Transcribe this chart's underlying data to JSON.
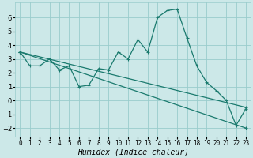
{
  "xlabel": "Humidex (Indice chaleur)",
  "background_color": "#cce8e8",
  "grid_color": "#99cccc",
  "line_color": "#1a7a6e",
  "xlim": [
    -0.5,
    23.5
  ],
  "ylim": [
    -2.6,
    7.1
  ],
  "yticks": [
    -2,
    -1,
    0,
    1,
    2,
    3,
    4,
    5,
    6
  ],
  "xticks": [
    0,
    1,
    2,
    3,
    4,
    5,
    6,
    7,
    8,
    9,
    10,
    11,
    12,
    13,
    14,
    15,
    16,
    17,
    18,
    19,
    20,
    21,
    22,
    23
  ],
  "line1_x": [
    0,
    1,
    2,
    3,
    4,
    5,
    6,
    7,
    8,
    9,
    10,
    11,
    12,
    13,
    14,
    15,
    16,
    17,
    18,
    19,
    20,
    21,
    22,
    23
  ],
  "line1_y": [
    3.5,
    2.5,
    2.5,
    3.0,
    2.2,
    2.5,
    1.0,
    1.1,
    2.3,
    2.2,
    3.5,
    3.0,
    4.4,
    3.5,
    6.0,
    6.5,
    6.6,
    4.5,
    2.5,
    1.3,
    0.7,
    0.0,
    -1.8,
    -0.6
  ],
  "line2_x": [
    0,
    23
  ],
  "line2_y": [
    3.5,
    -0.5
  ],
  "line3_x": [
    0,
    23
  ],
  "line3_y": [
    3.5,
    -2.0
  ],
  "marker_size": 3,
  "linewidth": 0.9,
  "tick_fontsize": 6,
  "xlabel_fontsize": 7
}
